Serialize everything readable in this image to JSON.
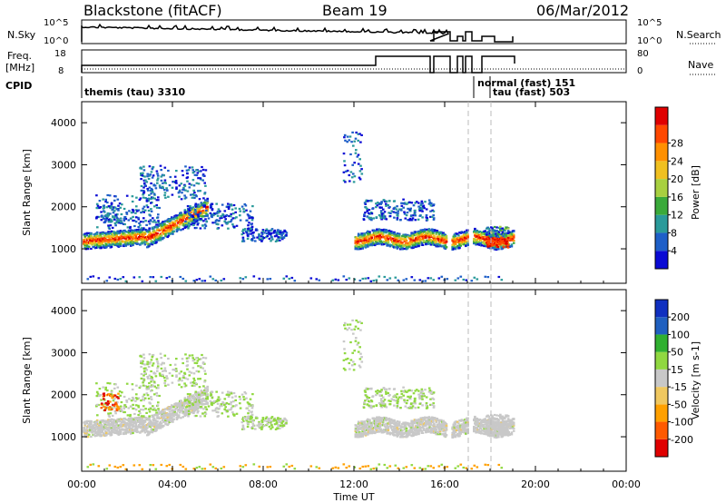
{
  "header": {
    "station": "Blackstone (fitACF)",
    "beam": "Beam 19",
    "date": "06/Mar/2012"
  },
  "panels": {
    "nsky_label": "N.Sky",
    "nsky_ticks": [
      "10^5",
      "10^0"
    ],
    "nsearch_label": "N.Search",
    "nsearch_ticks": [
      "10^5",
      "10^0"
    ],
    "freq_label_top": "Freq.",
    "freq_label_bot": "[MHz]",
    "freq_ticks": [
      "18",
      "8"
    ],
    "nave_label": "Nave",
    "nave_ticks": [
      "80",
      "0"
    ],
    "cpid_label": "CPID",
    "cpid_entries": [
      "themis (tau) 3310",
      "normal (fast) 151",
      "tau (fast) 503"
    ]
  },
  "colors": {
    "power_scale": [
      "#0a0ad4",
      "#1e5fc8",
      "#2a9a9a",
      "#3aaa3a",
      "#a8d040",
      "#f0c020",
      "#ff9000",
      "#ff4800",
      "#e00000"
    ],
    "velocity_scale": [
      "#e00000",
      "#ff5a00",
      "#ffa000",
      "#f0c860",
      "#c8c8c8",
      "#90d840",
      "#30b030",
      "#2060c0",
      "#1030c0"
    ]
  },
  "chart_data": [
    {
      "type": "heatmap",
      "title": "",
      "xlabel": "",
      "ylabel": "Slant Range [km]",
      "x_ticks": [
        "00:00",
        "04:00",
        "08:00",
        "12:00",
        "16:00",
        "20:00",
        "00:00"
      ],
      "y_ticks": [
        "1000",
        "2000",
        "3000",
        "4000"
      ],
      "ylim": [
        180,
        4500
      ],
      "colorbar_label": "Power [dB]",
      "colorbar_ticks": [
        "4",
        "8",
        "12",
        "16",
        "20",
        "24",
        "28"
      ]
    },
    {
      "type": "heatmap",
      "title": "",
      "xlabel": "Time UT",
      "ylabel": "Slant Range [km]",
      "x_ticks": [
        "00:00",
        "04:00",
        "08:00",
        "12:00",
        "16:00",
        "20:00",
        "00:00"
      ],
      "y_ticks": [
        "1000",
        "2000",
        "3000",
        "4000"
      ],
      "ylim": [
        180,
        4500
      ],
      "colorbar_label": "Velocity [m s-1]",
      "colorbar_ticks": [
        "-200",
        "-100",
        "-50",
        "-15",
        "15",
        "50",
        "100",
        "200"
      ]
    }
  ]
}
